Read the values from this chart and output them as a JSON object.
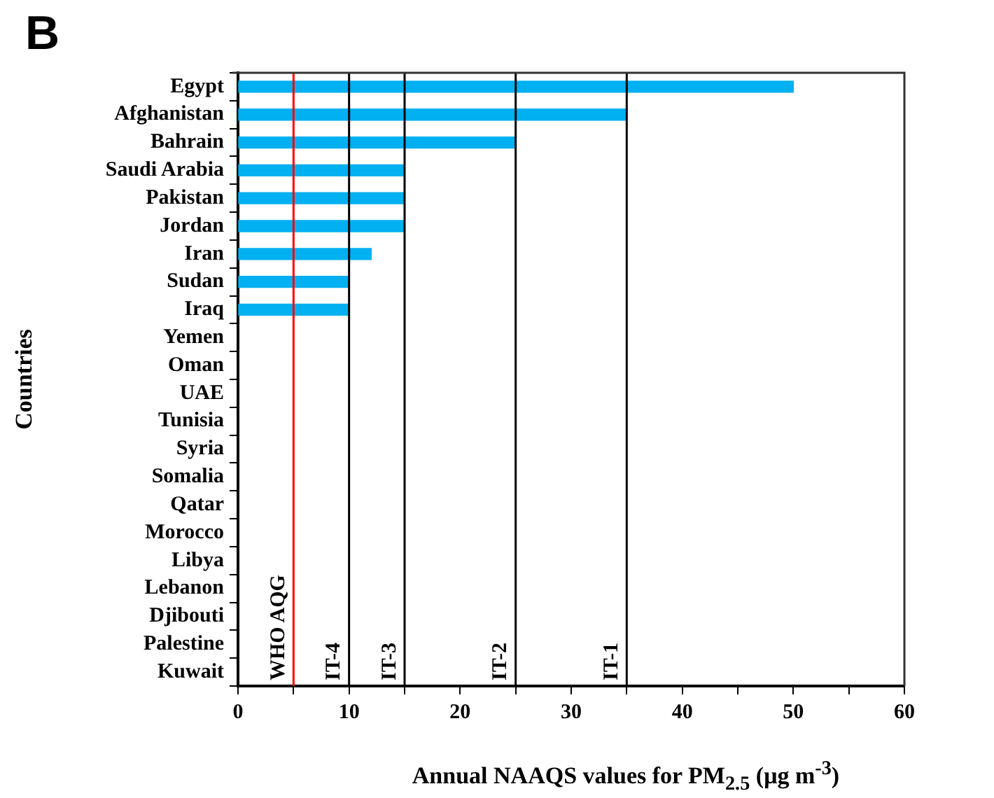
{
  "chart_data": {
    "type": "bar",
    "title": "B",
    "orientation": "horizontal",
    "categories": [
      "Egypt",
      "Afghanistan",
      "Bahrain",
      "Saudi Arabia",
      "Pakistan",
      "Jordan",
      "Iran",
      "Sudan",
      "Iraq",
      "Yemen",
      "Oman",
      "UAE",
      "Tunisia",
      "Syria",
      "Somalia",
      "Qatar",
      "Morocco",
      "Libya",
      "Lebanon",
      "Djibouti",
      "Palestine",
      "Kuwait"
    ],
    "values": [
      50,
      35,
      25,
      15,
      15,
      15,
      12,
      10,
      10,
      null,
      null,
      null,
      null,
      null,
      null,
      null,
      null,
      null,
      null,
      null,
      null,
      null
    ],
    "color": "#00b0f0",
    "xlabel": "Annual NAAQS values for PM$_{2.5}$ (μg m$^{-3}$)",
    "ylabel": "Countries",
    "xlim": [
      0,
      60
    ],
    "xticks": [
      0,
      {
        "value": 5,
        "label": null
      },
      10,
      {
        "value": 15,
        "label": null
      },
      20,
      {
        "value": 25,
        "label": null
      },
      30,
      {
        "value": 35,
        "label": null
      },
      40,
      {
        "value": 45,
        "label": null
      },
      50,
      {
        "value": 55,
        "label": null
      },
      60
    ],
    "ref_lines": [
      {
        "axis": "x",
        "value": 5,
        "label": "WHO AQG",
        "color": "#ff0000"
      },
      {
        "axis": "x",
        "value": 10,
        "label": "IT-4",
        "color": "#000000"
      },
      {
        "axis": "x",
        "value": 15,
        "label": "IT-3",
        "color": "#000000"
      },
      {
        "axis": "x",
        "value": 25,
        "label": "IT-2",
        "color": "#000000"
      },
      {
        "axis": "x",
        "value": 35,
        "label": "IT-1",
        "color": "#000000"
      }
    ],
    "grid": false,
    "legend": false
  }
}
